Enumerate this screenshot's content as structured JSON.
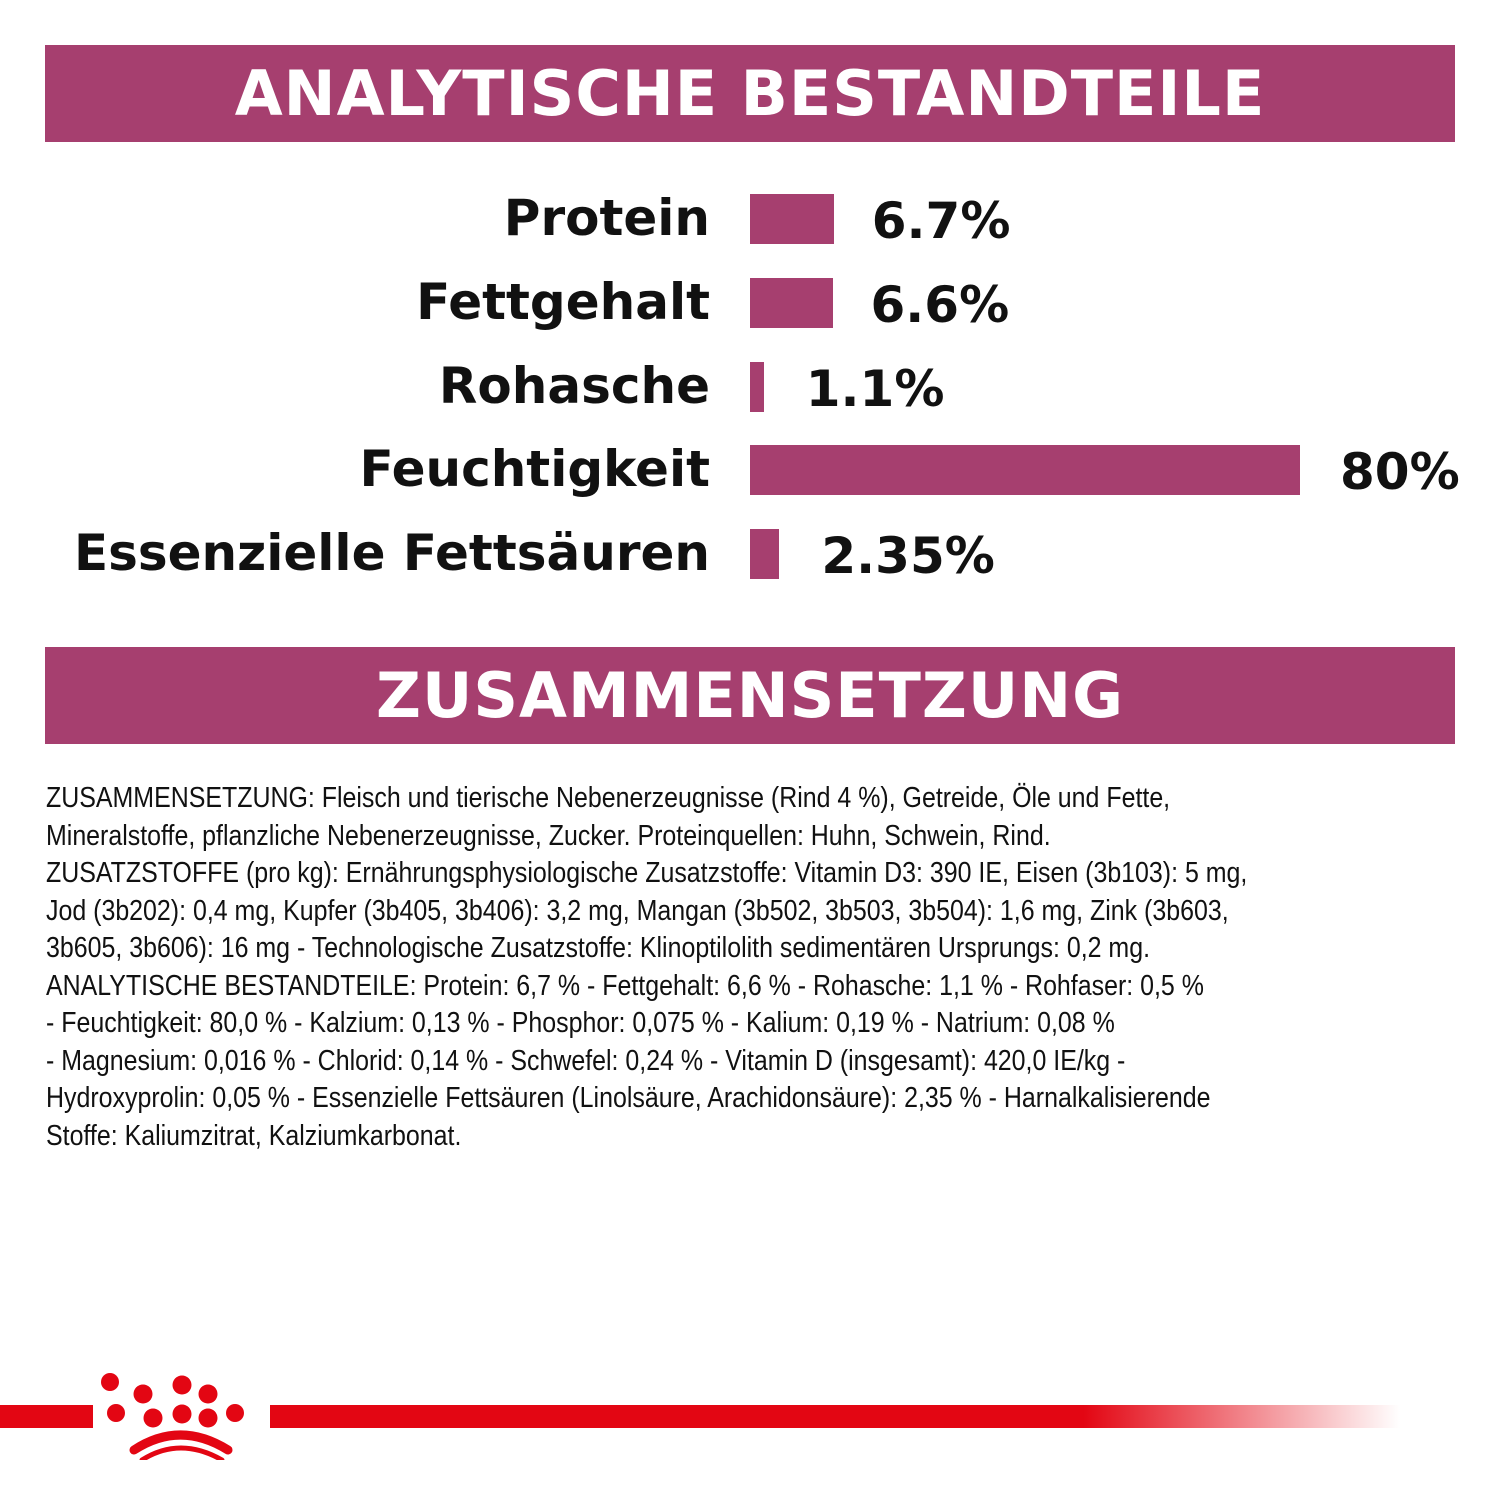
{
  "colors": {
    "accent": "#a63f6f",
    "brand_red": "#e30613"
  },
  "header1": {
    "title": "ANALYTISCHE BESTANDTEILE"
  },
  "header2": {
    "title": "ZUSAMMENSETZUNG"
  },
  "chart_data": {
    "type": "bar",
    "orientation": "horizontal",
    "categories": [
      "Protein",
      "Fettgehalt",
      "Rohasche",
      "Feuchtigkeit",
      "Essenzielle Fettsäuren"
    ],
    "values": [
      6.7,
      6.6,
      1.1,
      80,
      2.35
    ],
    "value_labels": [
      "6.7%",
      "6.6%",
      "1.1%",
      "80%",
      "2.35%"
    ],
    "unit": "%",
    "grid": false
  },
  "composition": {
    "lines": [
      "ZUSAMMENSETZUNG: Fleisch und tierische Nebenerzeugnisse (Rind 4 %), Getreide, Öle und Fette,",
      "Mineralstoffe, pflanzliche Nebenerzeugnisse, Zucker. Proteinquellen: Huhn, Schwein, Rind.",
      "ZUSATZSTOFFE (pro kg): Ernährungsphysiologische Zusatzstoffe: Vitamin D3: 390 IE, Eisen (3b103): 5 mg,",
      "Jod (3b202): 0,4 mg, Kupfer (3b405, 3b406): 3,2 mg, Mangan (3b502, 3b503, 3b504): 1,6 mg, Zink (3b603,",
      "3b605, 3b606): 16 mg - Technologische Zusatzstoffe: Klinoptilolith sedimentären Ursprungs: 0,2 mg.",
      "ANALYTISCHE BESTANDTEILE: Protein: 6,7 % - Fettgehalt: 6,6 % - Rohasche: 1,1 % - Rohfaser: 0,5 %",
      "- Feuchtigkeit: 80,0 % - Kalzium: 0,13 % - Phosphor: 0,075 % - Kalium: 0,19 % - Natrium: 0,08 %",
      "- Magnesium: 0,016 % - Chlorid: 0,14 % - Schwefel: 0,24 % - Vitamin D (insgesamt): 420,0 IE/kg -",
      "Hydroxyprolin: 0,05 % - Essenzielle Fettsäuren (Linolsäure, Arachidonsäure): 2,35 % - Harnalkalisierende",
      "Stoffe: Kaliumzitrat, Kalziumkarbonat."
    ]
  },
  "logo": {
    "icon": "crown-logo-icon"
  }
}
